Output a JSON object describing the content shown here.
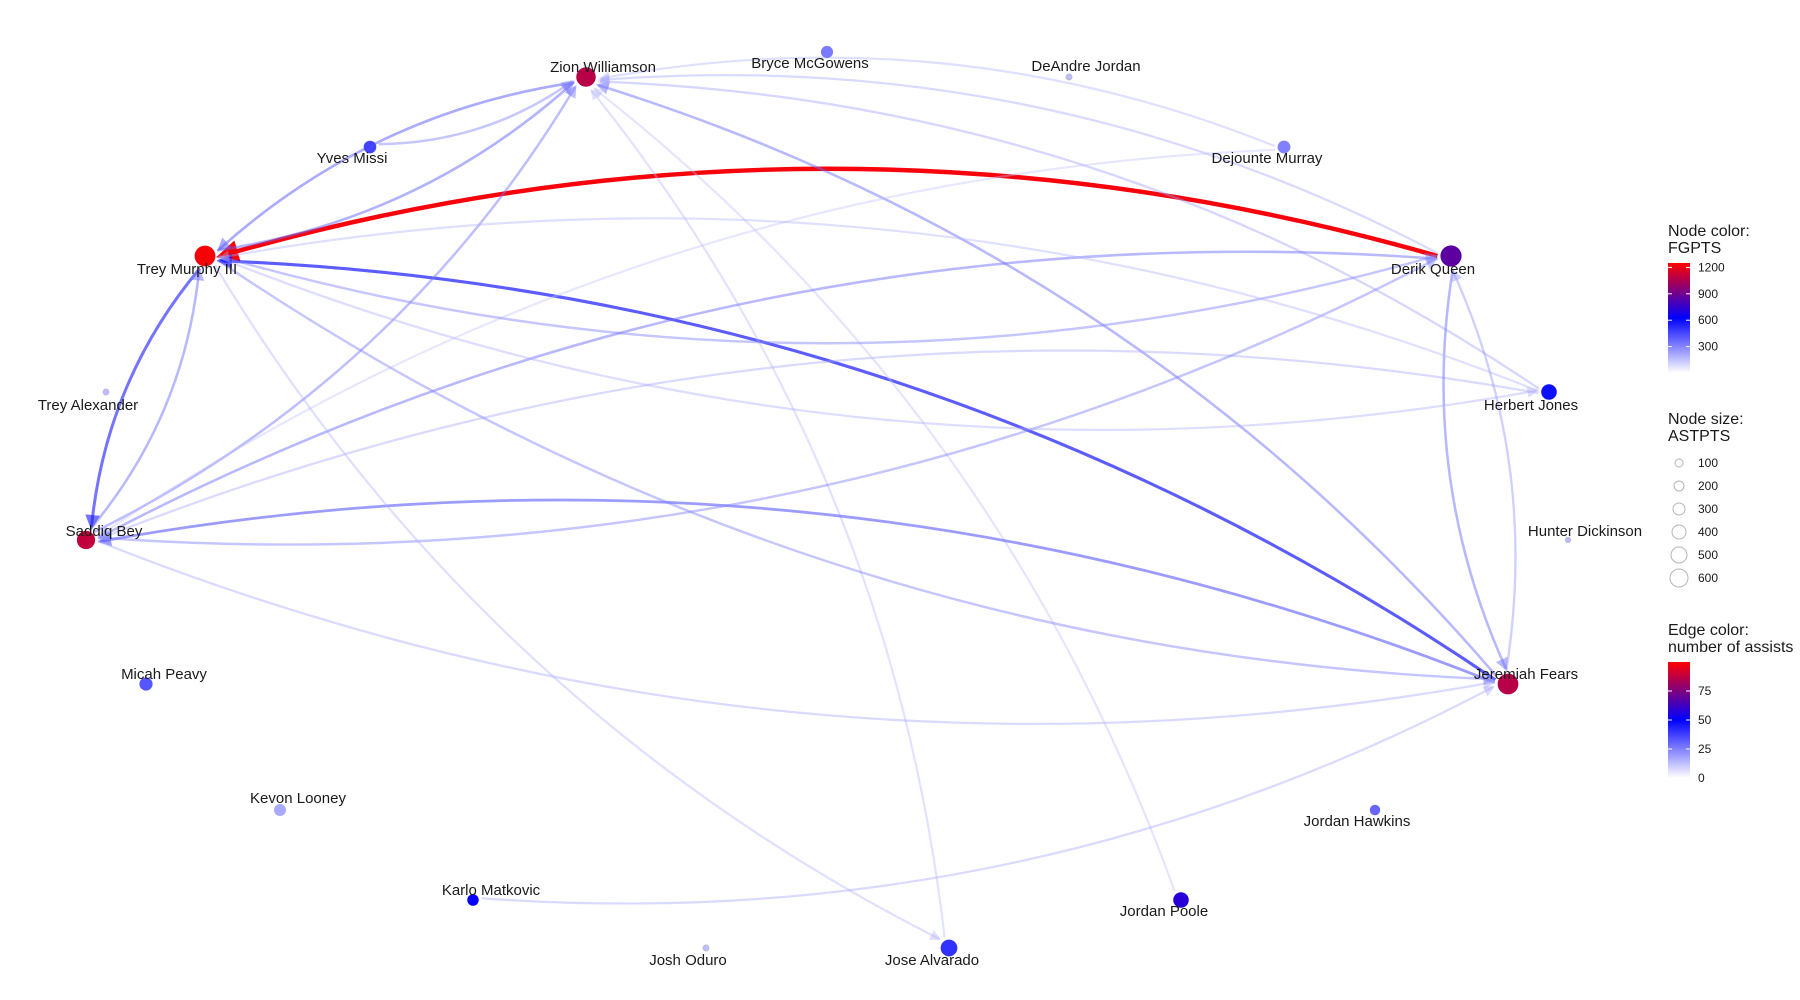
{
  "network": {
    "nodes": [
      {
        "name": "Zion Williamson",
        "fgpts": 1050,
        "astpts": 340
      },
      {
        "name": "Bryce McGowens",
        "fgpts": 200,
        "astpts": 95
      },
      {
        "name": "DeAndre Jordan",
        "fgpts": 20,
        "astpts": 5
      },
      {
        "name": "Yves Missi",
        "fgpts": 350,
        "astpts": 105
      },
      {
        "name": "Dejounte Murray",
        "fgpts": 180,
        "astpts": 110
      },
      {
        "name": "Trey Murphy III",
        "fgpts": 1230,
        "astpts": 400
      },
      {
        "name": "Derik Queen",
        "fgpts": 800,
        "astpts": 420
      },
      {
        "name": "Trey Alexander",
        "fgpts": 15,
        "astpts": 5
      },
      {
        "name": "Herbert Jones",
        "fgpts": 500,
        "astpts": 190
      },
      {
        "name": "Saddiq Bey",
        "fgpts": 1080,
        "astpts": 290
      },
      {
        "name": "Hunter Dickinson",
        "fgpts": 10,
        "astpts": 2
      },
      {
        "name": "Micah Peavy",
        "fgpts": 300,
        "astpts": 120
      },
      {
        "name": "Jeremiah Fears",
        "fgpts": 1050,
        "astpts": 400
      },
      {
        "name": "Kevon Looney",
        "fgpts": 70,
        "astpts": 90
      },
      {
        "name": "Jordan Hawkins",
        "fgpts": 250,
        "astpts": 60
      },
      {
        "name": "Karlo Matkovic",
        "fgpts": 550,
        "astpts": 80
      },
      {
        "name": "Jordan Poole",
        "fgpts": 650,
        "astpts": 190
      },
      {
        "name": "Josh Oduro",
        "fgpts": 10,
        "astpts": 5
      },
      {
        "name": "Jose Alvarado",
        "fgpts": 400,
        "astpts": 230
      }
    ],
    "edges": [
      {
        "from": "Derik Queen",
        "to": "Trey Murphy III",
        "assists": 98
      },
      {
        "from": "Jeremiah Fears",
        "to": "Trey Murphy III",
        "assists": 45
      },
      {
        "from": "Trey Murphy III",
        "to": "Saddiq Bey",
        "assists": 40
      },
      {
        "from": "Saddiq Bey",
        "to": "Trey Murphy III",
        "assists": 22
      },
      {
        "from": "Zion Williamson",
        "to": "Trey Murphy III",
        "assists": 26
      },
      {
        "from": "Trey Murphy III",
        "to": "Zion Williamson",
        "assists": 24
      },
      {
        "from": "Yves Missi",
        "to": "Zion Williamson",
        "assists": 18
      },
      {
        "from": "Saddiq Bey",
        "to": "Zion Williamson",
        "assists": 20
      },
      {
        "from": "Jeremiah Fears",
        "to": "Zion Williamson",
        "assists": 22
      },
      {
        "from": "Herbert Jones",
        "to": "Zion Williamson",
        "assists": 12
      },
      {
        "from": "Dejounte Murray",
        "to": "Zion Williamson",
        "assists": 8
      },
      {
        "from": "Derik Queen",
        "to": "Zion Williamson",
        "assists": 10
      },
      {
        "from": "Jose Alvarado",
        "to": "Zion Williamson",
        "assists": 7
      },
      {
        "from": "Jordan Poole",
        "to": "Zion Williamson",
        "assists": 6
      },
      {
        "from": "Derik Queen",
        "to": "Saddiq Bey",
        "assists": 22
      },
      {
        "from": "Jeremiah Fears",
        "to": "Saddiq Bey",
        "assists": 30
      },
      {
        "from": "Herbert Jones",
        "to": "Saddiq Bey",
        "assists": 10
      },
      {
        "from": "Dejounte Murray",
        "to": "Saddiq Bey",
        "assists": 5
      },
      {
        "from": "Saddiq Bey",
        "to": "Derik Queen",
        "assists": 18
      },
      {
        "from": "Trey Murphy III",
        "to": "Derik Queen",
        "assists": 18
      },
      {
        "from": "Derik Queen",
        "to": "Jeremiah Fears",
        "assists": 22
      },
      {
        "from": "Jeremiah Fears",
        "to": "Derik Queen",
        "assists": 14
      },
      {
        "from": "Saddiq Bey",
        "to": "Jeremiah Fears",
        "assists": 10
      },
      {
        "from": "Trey Murphy III",
        "to": "Jeremiah Fears",
        "assists": 18
      },
      {
        "from": "Karlo Matkovic",
        "to": "Jeremiah Fears",
        "assists": 10
      },
      {
        "from": "Herbert Jones",
        "to": "Trey Murphy III",
        "assists": 8
      },
      {
        "from": "Trey Murphy III",
        "to": "Herbert Jones",
        "assists": 9
      },
      {
        "from": "Trey Murphy III",
        "to": "Jose Alvarado",
        "assists": 8
      }
    ]
  },
  "legend": {
    "node_color": {
      "title_line1": "Node color:",
      "title_line2": "FGPTS",
      "ticks": [
        "1200",
        "900",
        "600",
        "300"
      ],
      "tick_values": [
        1200,
        900,
        600,
        300
      ],
      "range": [
        0,
        1250
      ]
    },
    "node_size": {
      "title_line1": "Node size:",
      "title_line2": "ASTPTS",
      "ticks": [
        "100",
        "200",
        "300",
        "400",
        "500",
        "600"
      ],
      "tick_values": [
        100,
        200,
        300,
        400,
        500,
        600
      ]
    },
    "edge_color": {
      "title_line1": "Edge color:",
      "title_line2": "number of assists",
      "ticks": [
        "75",
        "50",
        "25",
        "0"
      ],
      "tick_values": [
        75,
        50,
        25,
        0
      ],
      "range": [
        0,
        100
      ]
    }
  },
  "colors": {
    "low": "#ffffff",
    "mid": "#0000ff",
    "high": "#ff0000"
  }
}
